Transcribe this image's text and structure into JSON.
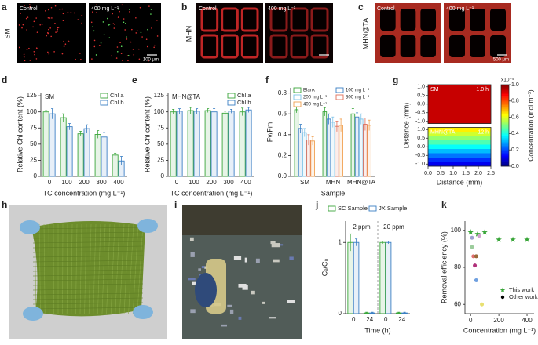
{
  "photos": {
    "a": {
      "letter": "a",
      "row_label": "SM",
      "left_label": "Control",
      "right_label": "400 mg L⁻¹",
      "scale_bar": "100 μm"
    },
    "b": {
      "letter": "b",
      "row_label": "MHN",
      "left_label": "Control",
      "right_label": "400 mg L⁻¹"
    },
    "c": {
      "letter": "c",
      "row_label": "MHN@TA",
      "left_label": "Control",
      "right_label": "400 mg L⁻¹",
      "scale_bar": "500 μm"
    },
    "h": {
      "letter": "h"
    },
    "i": {
      "letter": "i"
    }
  },
  "chart_data": [
    {
      "type": "bar",
      "panel": "d",
      "annotation": "SM",
      "ylabel": "Relative Chl content (%)",
      "xlabel": "TC concentration (mg L⁻¹)",
      "categories": [
        "0",
        "100",
        "200",
        "300",
        "400"
      ],
      "series": [
        {
          "name": "Chl a",
          "color": "#3aa63a",
          "values": [
            100,
            91,
            66,
            65,
            33
          ],
          "errors": [
            2,
            6,
            4,
            6,
            3
          ]
        },
        {
          "name": "Chl b",
          "color": "#3a7fc4",
          "values": [
            97,
            77,
            74,
            61,
            24
          ],
          "errors": [
            8,
            5,
            6,
            7,
            7
          ]
        }
      ],
      "ylim": [
        0,
        130
      ],
      "yticks": [
        0,
        25,
        50,
        75,
        100,
        125
      ],
      "legend": "upper right"
    },
    {
      "type": "bar",
      "panel": "e",
      "annotation": "MHN@TA",
      "ylabel": "Relative Chl content (%)",
      "xlabel": "TC concentration (mg L⁻¹)",
      "categories": [
        "0",
        "100",
        "200",
        "300",
        "400"
      ],
      "series": [
        {
          "name": "Chl a",
          "color": "#3aa63a",
          "values": [
            100,
            102,
            102,
            98,
            100
          ],
          "errors": [
            4,
            5,
            3,
            3,
            6
          ]
        },
        {
          "name": "Chl b",
          "color": "#3a7fc4",
          "values": [
            101,
            101,
            100,
            101,
            103
          ],
          "errors": [
            4,
            4,
            5,
            3,
            4
          ]
        }
      ],
      "ylim": [
        0,
        130
      ],
      "yticks": [
        0,
        25,
        50,
        75,
        100,
        125
      ],
      "legend": "upper right"
    },
    {
      "type": "bar",
      "panel": "f",
      "ylabel": "Fv/Fm",
      "xlabel": "Sample",
      "categories": [
        "SM",
        "MHN",
        "MHN@TA"
      ],
      "series": [
        {
          "name": "Blank",
          "color": "#3aa63a",
          "values": [
            0.64,
            0.62,
            0.6
          ],
          "errors": [
            0.03,
            0.04,
            0.05
          ]
        },
        {
          "name": "100 mg L⁻¹",
          "color": "#3a7fc4",
          "values": [
            0.46,
            0.55,
            0.57
          ],
          "errors": [
            0.04,
            0.05,
            0.04
          ]
        },
        {
          "name": "200 mg L⁻¹",
          "color": "#7ec3e8",
          "values": [
            0.42,
            0.52,
            0.55
          ],
          "errors": [
            0.04,
            0.05,
            0.05
          ]
        },
        {
          "name": "300 mg L⁻¹",
          "color": "#e0705a",
          "values": [
            0.35,
            0.48,
            0.5
          ],
          "errors": [
            0.05,
            0.05,
            0.06
          ]
        },
        {
          "name": "400 mg L⁻¹",
          "color": "#f0a050",
          "values": [
            0.34,
            0.49,
            0.49
          ],
          "errors": [
            0.04,
            0.06,
            0.05
          ]
        }
      ],
      "ylim": [
        0,
        0.85
      ],
      "yticks": [
        {
          "value": 0,
          "label": "0.0"
        },
        0.2,
        0.4,
        0.6,
        0.8
      ],
      "legend": "upper center"
    },
    {
      "type": "heatmap",
      "panel": "g",
      "xlabel": "Distance (mm)",
      "ylabel": "Distance (mm)",
      "xlim": [
        0,
        2.5
      ],
      "xticks": [
        {
          "value": 0,
          "label": "0.0"
        },
        0.5,
        {
          "value": 1,
          "label": "1.0"
        },
        1.5,
        {
          "value": 2,
          "label": "2.0"
        },
        2.5
      ],
      "ylim": [
        -1.125,
        1.125
      ],
      "yticks": [
        {
          "value": 1,
          "label": "1.0"
        },
        0.5,
        {
          "value": 0,
          "label": "0.0"
        },
        -0.5,
        {
          "value": -1,
          "label": "-1.0"
        }
      ],
      "y": [
        1,
        0.75,
        0.5,
        0.25,
        0,
        -0.25,
        -0.5,
        -0.75,
        -1
      ],
      "panels": [
        {
          "name": "SM",
          "time": "1.0 h",
          "values": [
            0.93,
            0.93,
            0.93,
            0.93,
            0.93,
            0.93,
            0.93,
            0.93,
            0.93
          ]
        },
        {
          "name": "MHN@TA",
          "time": "12 h",
          "values": [
            0.64,
            0.58,
            0.52,
            0.45,
            0.38,
            0.31,
            0.24,
            0.17,
            0.11
          ]
        }
      ],
      "colormap": "jet",
      "clim": [
        0,
        1
      ],
      "cticks": [
        {
          "value": 0,
          "label": "0.0"
        },
        0.2,
        0.4,
        0.6,
        0.8,
        {
          "value": 1,
          "label": "1.0"
        }
      ],
      "clabel": "Concentration (mol m⁻³)",
      "cmultiplier": "x10⁻⁵"
    },
    {
      "type": "bar",
      "panel": "j",
      "ylabel": "Cₑ/C₀",
      "xlabel": "Time (h)",
      "categories": [
        "0",
        "24",
        "0",
        "24"
      ],
      "group_labels": [
        "2 ppm",
        "20 ppm"
      ],
      "series": [
        {
          "name": "SC Sample",
          "color": "#3aa63a",
          "values": [
            1.0,
            0.01,
            1.0,
            0.01
          ],
          "errors": [
            0.12,
            0.01,
            0.02,
            0.01
          ]
        },
        {
          "name": "JX Sample",
          "color": "#3a7fc4",
          "values": [
            1.0,
            0.01,
            1.0,
            0.01
          ],
          "errors": [
            0.05,
            0.01,
            0.02,
            0.01
          ]
        }
      ],
      "ylim": [
        0,
        1.3
      ],
      "yticks": [
        0,
        1
      ],
      "legend": "above"
    },
    {
      "type": "scatter",
      "panel": "k",
      "ylabel": "Removal efficiency (%)",
      "xlabel": "Concentration (mg L⁻¹)",
      "series": [
        {
          "name": "This work",
          "color": "#3aa63a",
          "marker": "star",
          "x": [
            0,
            50,
            100,
            200,
            300,
            400
          ],
          "values": [
            99,
            98,
            99,
            95,
            95,
            95
          ]
        },
        {
          "name": "Other works",
          "color": "#000000",
          "marker": "circle",
          "x": [
            10,
            10,
            20,
            40,
            30,
            40,
            80,
            60
          ],
          "values": [
            96,
            91,
            86,
            86,
            81,
            73,
            60,
            97
          ],
          "point_colors": [
            "#a0a0d0",
            "#9ccc9c",
            "#e07070",
            "#9a6a3a",
            "#b0307a",
            "#6fa0e0",
            "#e8e070",
            "#d0a0d0"
          ]
        }
      ],
      "xlim": [
        -40,
        450
      ],
      "xticks": [
        0,
        200,
        400
      ],
      "ylim": [
        55,
        105
      ],
      "yticks": [
        60,
        80,
        100
      ],
      "legend": "lower right"
    }
  ]
}
